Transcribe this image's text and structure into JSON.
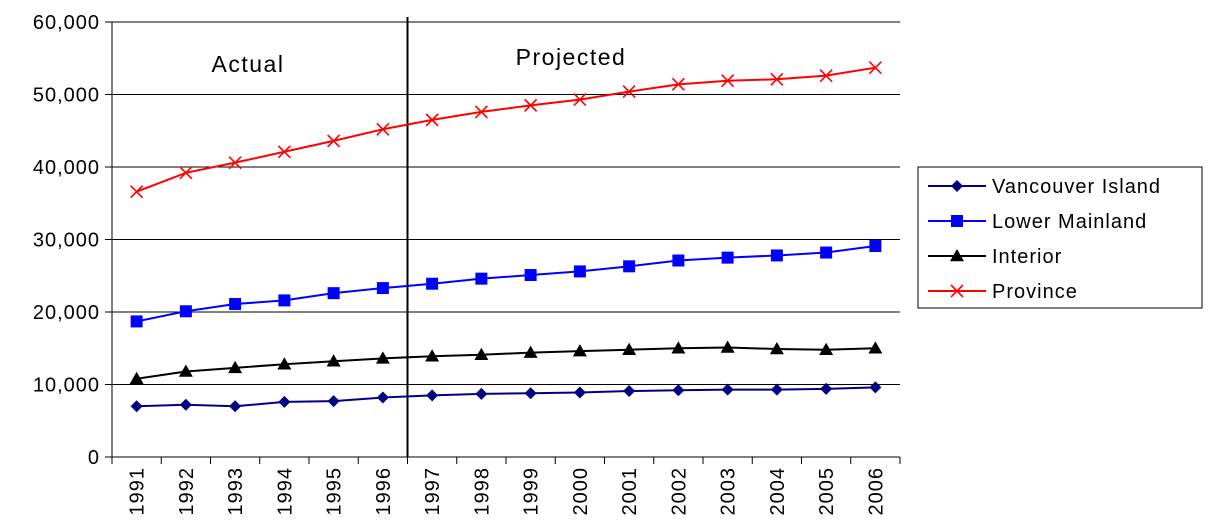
{
  "chart_data": {
    "type": "line",
    "categories": [
      "1991",
      "1992",
      "1993",
      "1994",
      "1995",
      "1996",
      "1997",
      "1998",
      "1999",
      "2000",
      "2001",
      "2002",
      "2003",
      "2004",
      "2005",
      "2006"
    ],
    "ylim": [
      0,
      60000
    ],
    "y_ticks": [
      {
        "value": 0,
        "label": "0"
      },
      {
        "value": 10000,
        "label": "10,000"
      },
      {
        "value": 20000,
        "label": "20,000"
      },
      {
        "value": 30000,
        "label": "30,000"
      },
      {
        "value": 40000,
        "label": "40,000"
      },
      {
        "value": 50000,
        "label": "50,000"
      },
      {
        "value": 60000,
        "label": "60,000"
      }
    ],
    "grid": true,
    "legend_position": "right",
    "divider_after_category": "1996",
    "phase_labels": {
      "left": "Actual",
      "right": "Projected"
    },
    "series": [
      {
        "name": "Vancouver Island",
        "marker": "diamond",
        "color": "#000080",
        "values": [
          7000,
          7200,
          7000,
          7600,
          7700,
          8200,
          8500,
          8700,
          8800,
          8900,
          9100,
          9200,
          9300,
          9300,
          9400,
          9600
        ]
      },
      {
        "name": "Lower Mainland",
        "marker": "square",
        "color": "#0000FF",
        "values": [
          18700,
          20100,
          21100,
          21600,
          22600,
          23300,
          23900,
          24600,
          25100,
          25600,
          26300,
          27100,
          27500,
          27800,
          28200,
          29100
        ]
      },
      {
        "name": "Interior",
        "marker": "triangle",
        "color": "#000000",
        "values": [
          10800,
          11800,
          12300,
          12800,
          13200,
          13600,
          13900,
          14100,
          14400,
          14600,
          14800,
          15000,
          15100,
          14900,
          14800,
          15000
        ]
      },
      {
        "name": "Province",
        "marker": "x",
        "color": "#FF0000",
        "values": [
          36600,
          39200,
          40600,
          42100,
          43600,
          45200,
          46500,
          47600,
          48500,
          49300,
          50400,
          51400,
          51900,
          52100,
          52600,
          53700
        ]
      }
    ]
  }
}
